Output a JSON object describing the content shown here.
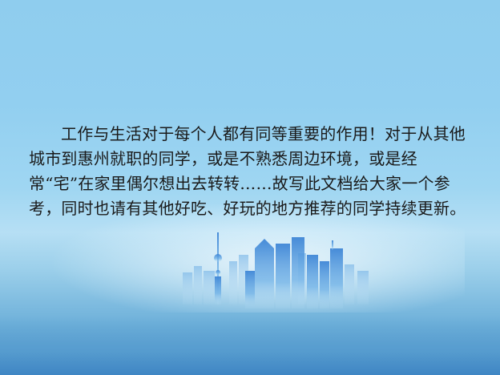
{
  "slide": {
    "paragraph": "工作与生活对于每个人都有同等重要的作用！对于从其他城市到惠州就职的同学，或是不熟悉周边环境，或是经常“宅”在家里偶尔想出去转转……故写此文档给大家一个参考，同时也请有其他好吃、好玩的地方推荐的同学持续更新。"
  },
  "colors": {
    "background_top": "#8fcdee",
    "background_bottom": "#4f97c9",
    "text": "#1a1a1a",
    "skyline": "#5aa0dc"
  }
}
